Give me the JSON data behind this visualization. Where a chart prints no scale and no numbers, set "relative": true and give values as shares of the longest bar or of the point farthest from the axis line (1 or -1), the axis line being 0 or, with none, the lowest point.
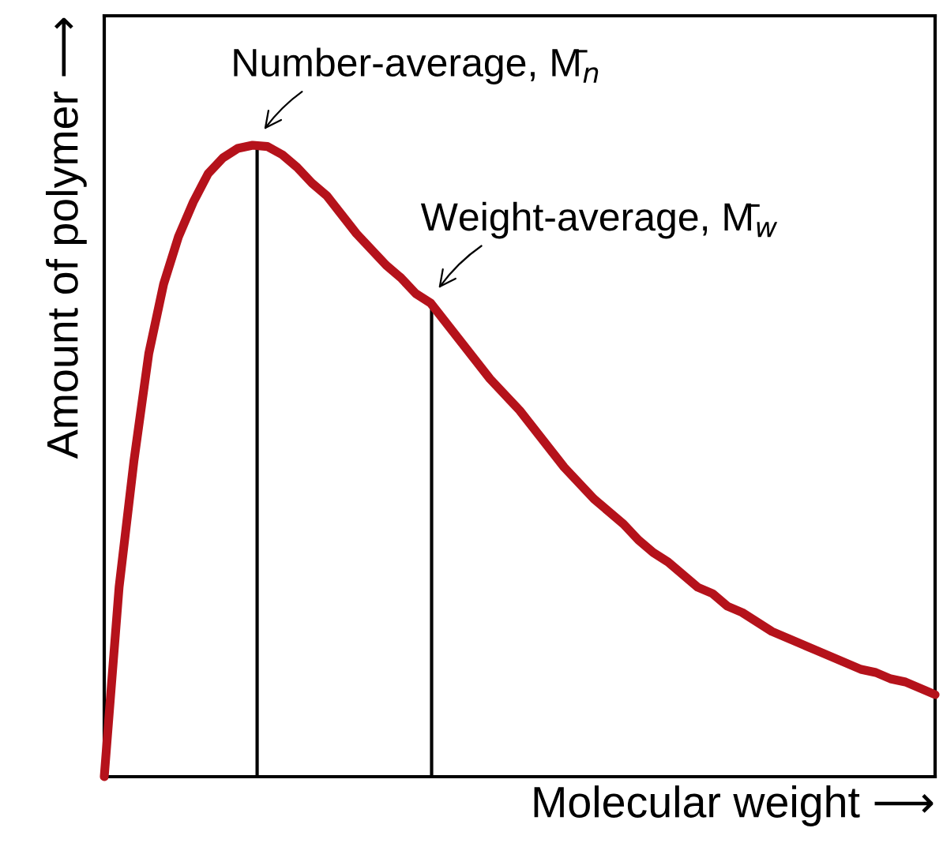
{
  "chart_data": {
    "type": "line",
    "relative": true,
    "xlabel": "Molecular weight ⟶",
    "ylabel": "Amount of polymer ⟶",
    "categories": [
      null,
      null,
      null,
      null,
      null,
      null,
      null,
      null,
      null,
      null,
      null,
      null,
      null,
      null,
      null,
      null,
      null,
      null,
      null,
      null,
      null,
      null,
      null,
      null,
      null,
      null,
      null,
      null,
      null,
      null,
      null,
      null,
      null,
      null,
      null,
      null,
      null,
      null,
      null,
      null,
      null,
      null,
      null,
      null,
      null,
      null,
      null,
      null,
      null,
      null,
      null,
      null,
      null,
      null,
      null,
      null,
      null
    ],
    "series": [
      {
        "color": "#b5121b",
        "values": [
          0,
          0.3,
          0.5,
          0.67,
          0.78,
          0.855,
          0.91,
          0.955,
          0.98,
          0.995,
          1.0,
          0.998,
          0.985,
          0.965,
          0.94,
          0.92,
          0.89,
          0.86,
          0.835,
          0.81,
          0.79,
          0.765,
          0.75,
          0.72,
          0.69,
          0.66,
          0.63,
          0.605,
          0.58,
          0.55,
          0.52,
          0.49,
          0.465,
          0.44,
          0.42,
          0.4,
          0.375,
          0.355,
          0.34,
          0.32,
          0.3,
          0.29,
          0.27,
          0.26,
          0.245,
          0.23,
          0.22,
          0.21,
          0.2,
          0.19,
          0.18,
          0.17,
          0.165,
          0.155,
          0.15,
          0.14,
          0.13
        ]
      }
    ],
    "annotations": [
      "Number-average, M̄$_{n}$",
      "Weight-average, M̄$_{w}$"
    ],
    "legend": false,
    "marker": "none",
    "line_style": "solid",
    "tick_labels": false
  }
}
